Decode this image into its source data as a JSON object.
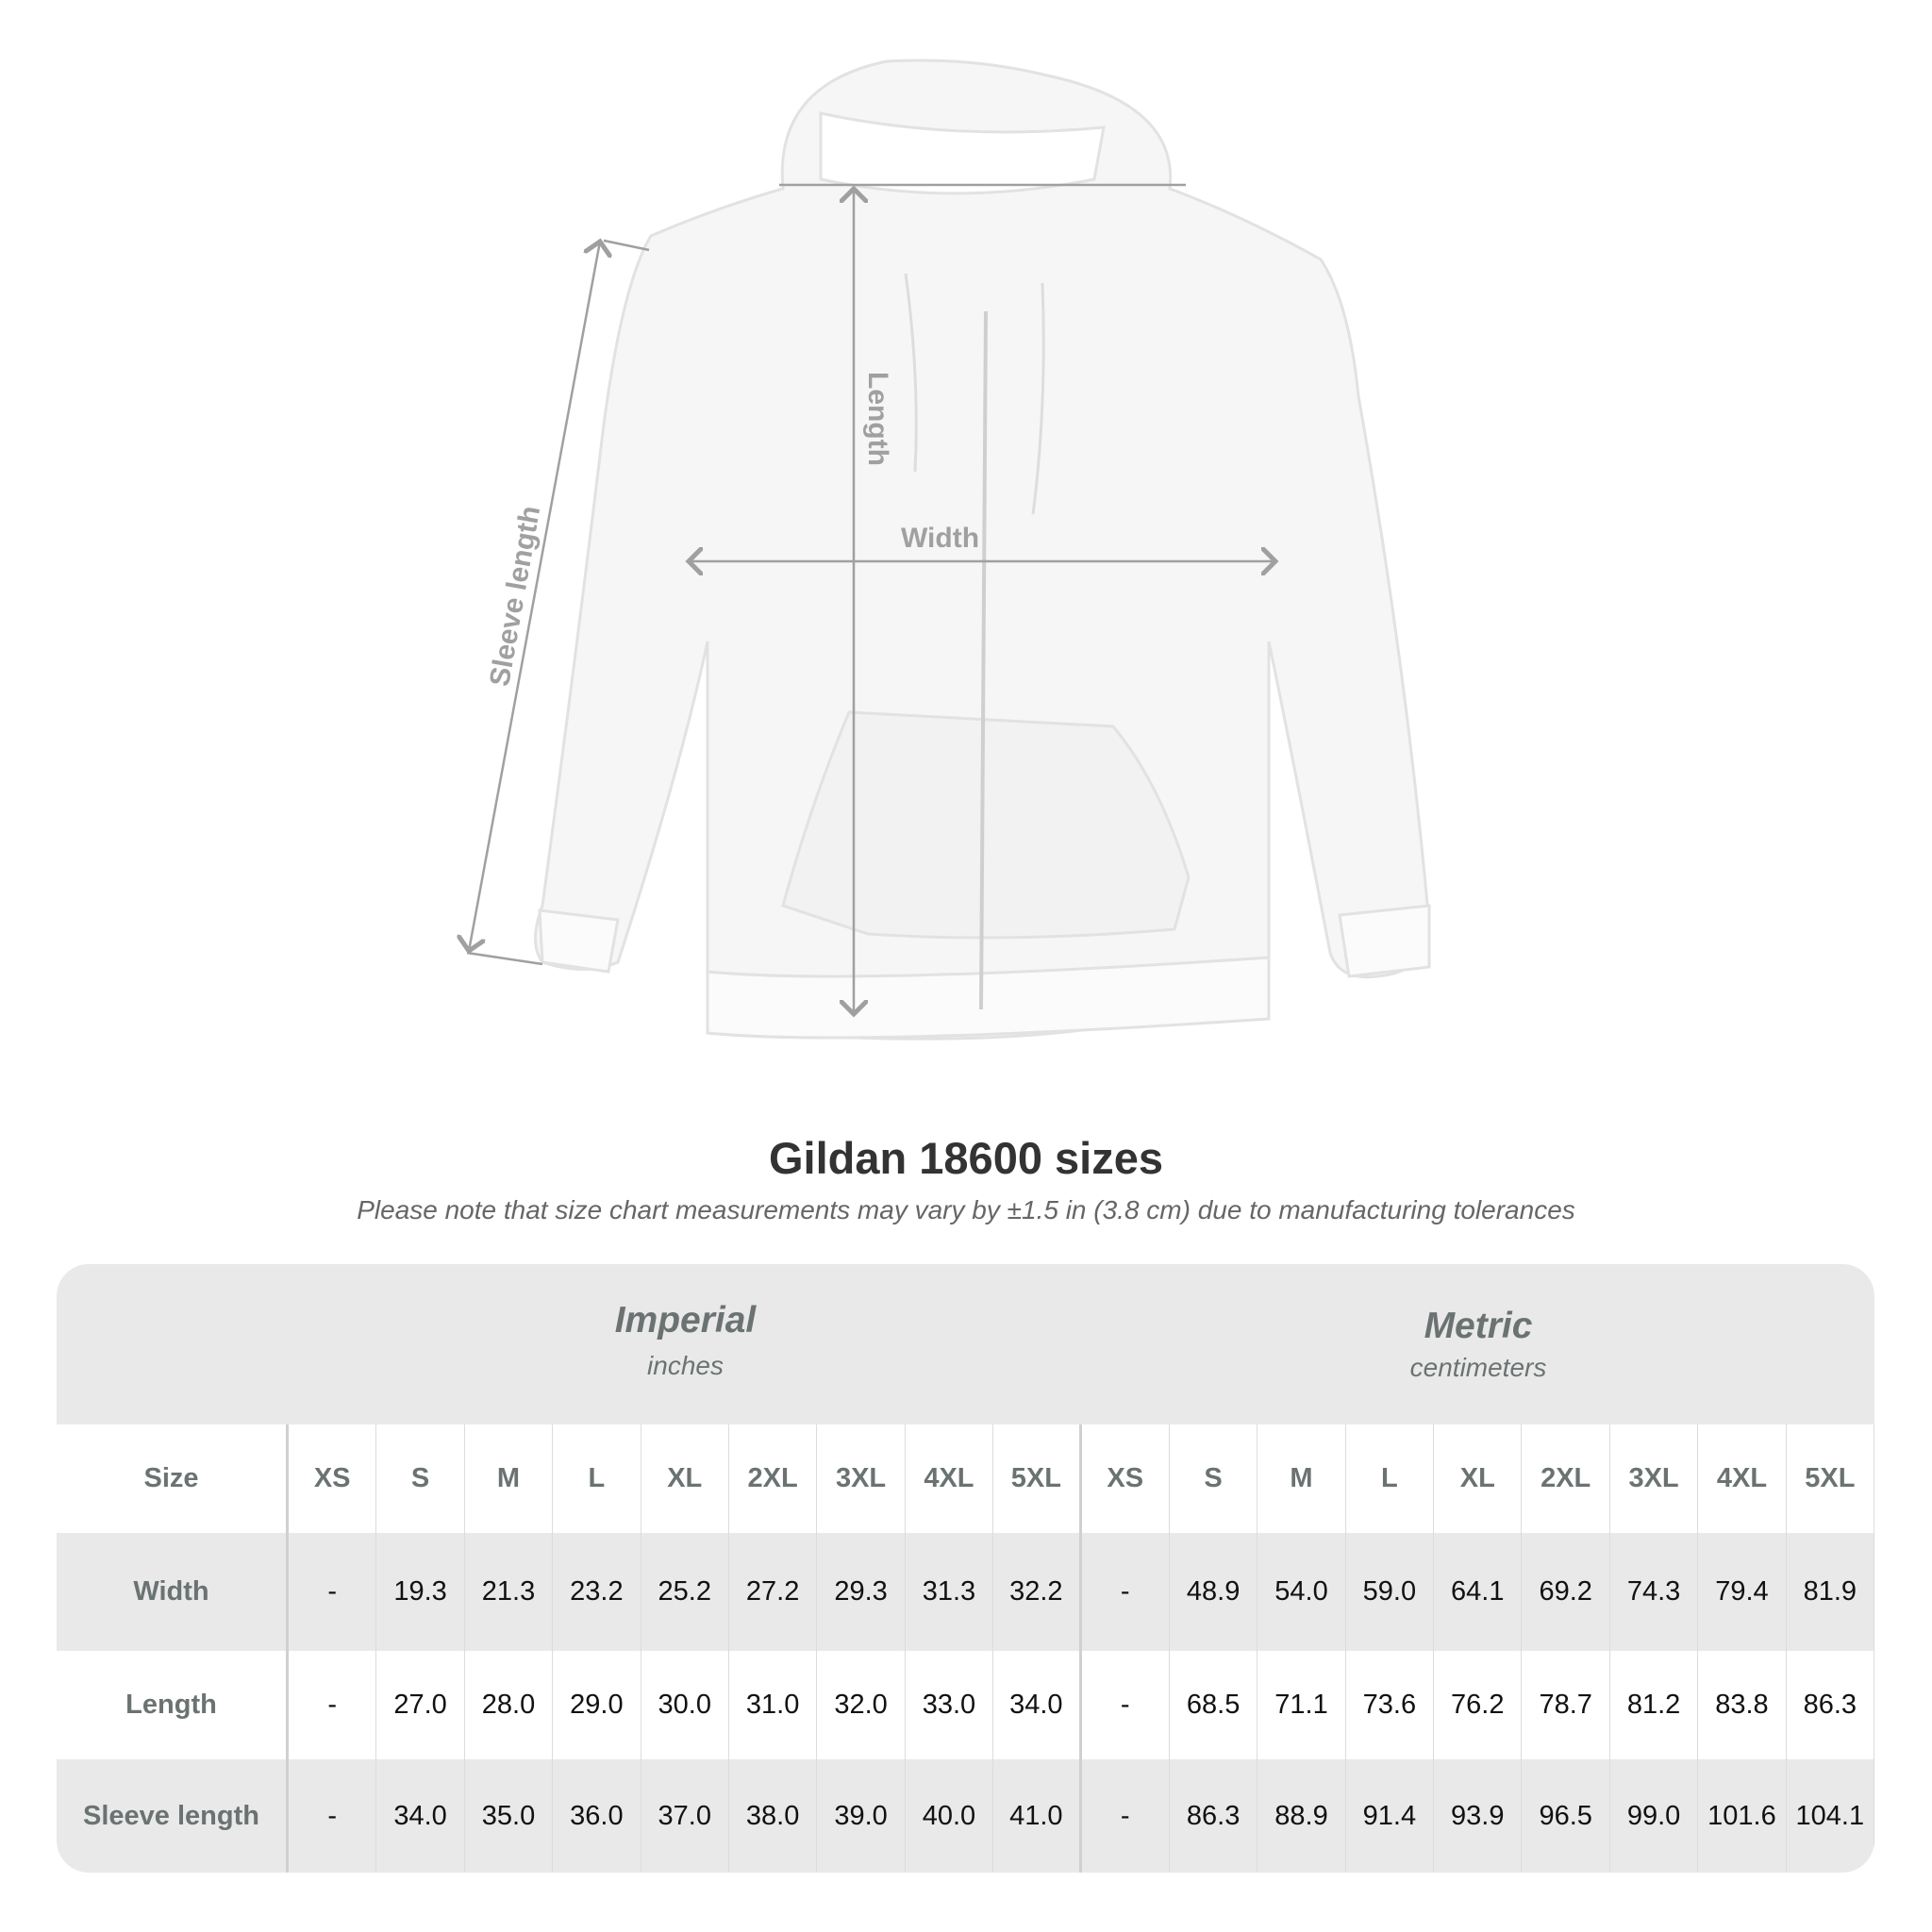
{
  "diagram": {
    "length_label": "Length",
    "width_label": "Width",
    "sleeve_label": "Sleeve length"
  },
  "title": "Gildan 18600 sizes",
  "note": "Please note that size chart measurements may vary by ±1.5 in (3.8 cm) due to manufacturing tolerances",
  "table": {
    "imperial": {
      "title": "Imperial",
      "unit": "inches"
    },
    "metric": {
      "title": "Metric",
      "unit": "centimeters"
    },
    "size_label": "Size",
    "sizes": [
      "XS",
      "S",
      "M",
      "L",
      "XL",
      "2XL",
      "3XL",
      "4XL",
      "5XL"
    ],
    "rows": [
      {
        "label": "Width",
        "imperial": [
          "-",
          "19.3",
          "21.3",
          "23.2",
          "25.2",
          "27.2",
          "29.3",
          "31.3",
          "32.2"
        ],
        "metric": [
          "-",
          "48.9",
          "54.0",
          "59.0",
          "64.1",
          "69.2",
          "74.3",
          "79.4",
          "81.9"
        ]
      },
      {
        "label": "Length",
        "imperial": [
          "-",
          "27.0",
          "28.0",
          "29.0",
          "30.0",
          "31.0",
          "32.0",
          "33.0",
          "34.0"
        ],
        "metric": [
          "-",
          "68.5",
          "71.1",
          "73.6",
          "76.2",
          "78.7",
          "81.2",
          "83.8",
          "86.3"
        ]
      },
      {
        "label": "Sleeve length",
        "imperial": [
          "-",
          "34.0",
          "35.0",
          "36.0",
          "37.0",
          "38.0",
          "39.0",
          "40.0",
          "41.0"
        ],
        "metric": [
          "-",
          "86.3",
          "88.9",
          "91.4",
          "93.9",
          "96.5",
          "99.0",
          "101.6",
          "104.1"
        ]
      }
    ]
  },
  "colors": {
    "header_text": "#6b7372",
    "band": "#e9e9e9",
    "measure_line": "#a0a0a0"
  }
}
